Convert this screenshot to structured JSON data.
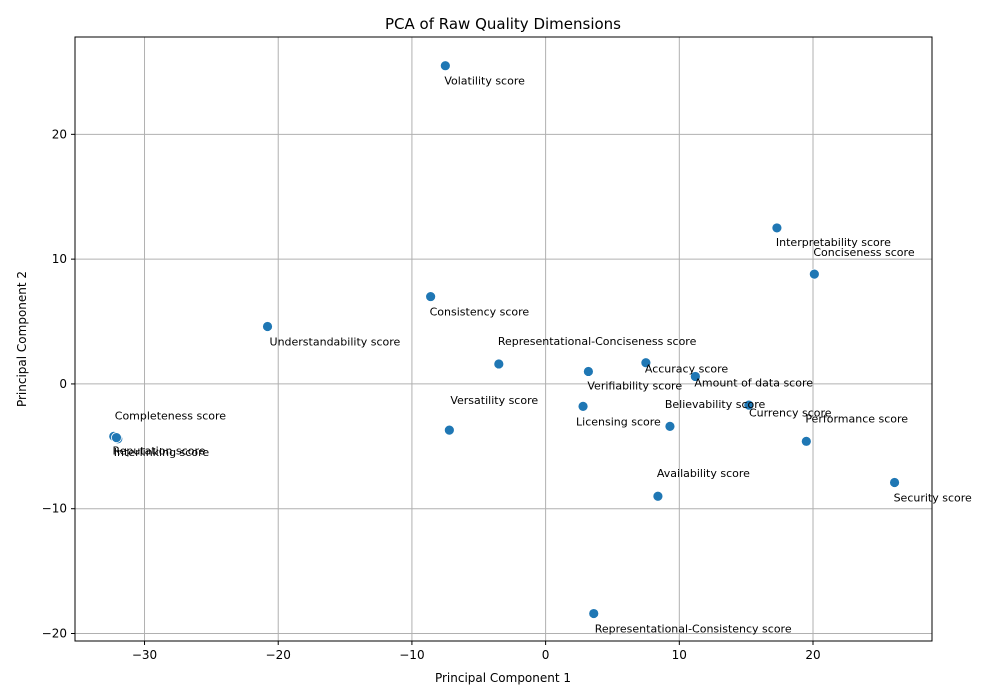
{
  "chart_data": {
    "type": "scatter",
    "title": "PCA of Raw Quality Dimensions",
    "xlabel": "Principal Component 1",
    "ylabel": "Principal Component 2",
    "xlim": [
      -35.2,
      28.9
    ],
    "ylim": [
      -20.6,
      27.8
    ],
    "xticks": [
      -30,
      -20,
      -10,
      0,
      10,
      20
    ],
    "yticks": [
      -20,
      -10,
      0,
      10,
      20
    ],
    "grid": true,
    "marker_color": "#1f77b4",
    "points": [
      {
        "label": "Volatility score",
        "x": -7.5,
        "y": 25.5
      },
      {
        "label": "Interpretability score",
        "x": 17.3,
        "y": 12.5
      },
      {
        "label": "Conciseness score",
        "x": 20.1,
        "y": 8.8
      },
      {
        "label": "Consistency score",
        "x": -8.6,
        "y": 7.0
      },
      {
        "label": "Understandability score",
        "x": -20.8,
        "y": 4.6
      },
      {
        "label": "Representational-Conciseness score",
        "x": -3.5,
        "y": 1.6
      },
      {
        "label": "Verifiability score",
        "x": 3.2,
        "y": 1.0
      },
      {
        "label": "Accuracy score",
        "x": 7.5,
        "y": 1.7
      },
      {
        "label": "Amount of data score",
        "x": 11.2,
        "y": 0.6
      },
      {
        "label": "Believability score",
        "x": 15.2,
        "y": -1.7
      },
      {
        "label": "Licensing score",
        "x": 2.8,
        "y": -1.8
      },
      {
        "label": "Versatility score",
        "x": -7.2,
        "y": -3.7
      },
      {
        "label": "Currency score",
        "x": 9.3,
        "y": -3.4
      },
      {
        "label": "Performance score",
        "x": 19.5,
        "y": -4.6
      },
      {
        "label": "Completeness score",
        "x": -32.3,
        "y": -4.2
      },
      {
        "label": "Interlinking score",
        "x": -32.0,
        "y": -4.4
      },
      {
        "label": "Reputation score",
        "x": -32.1,
        "y": -4.3
      },
      {
        "label": "Availability score",
        "x": 8.4,
        "y": -9.0
      },
      {
        "label": "Security score",
        "x": 26.1,
        "y": -7.9
      },
      {
        "label": "Representational-Consistency score",
        "x": 3.6,
        "y": -18.4
      }
    ]
  }
}
